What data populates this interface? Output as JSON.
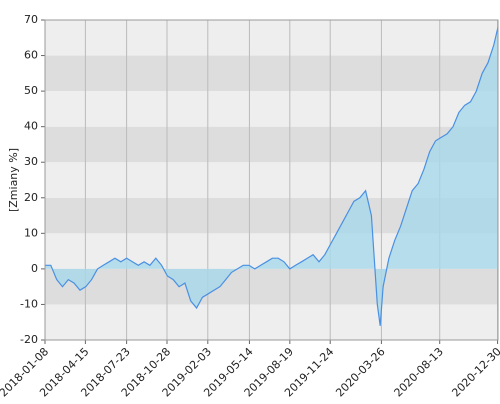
{
  "chart_data": {
    "type": "area",
    "y_label": "[Zmiany %]",
    "x": [
      "2018-01-08",
      "2018-01-22",
      "2018-02-05",
      "2018-02-19",
      "2018-03-05",
      "2018-03-19",
      "2018-04-02",
      "2018-04-16",
      "2018-04-30",
      "2018-05-14",
      "2018-05-28",
      "2018-06-11",
      "2018-06-25",
      "2018-07-09",
      "2018-07-23",
      "2018-08-06",
      "2018-08-20",
      "2018-09-03",
      "2018-09-17",
      "2018-10-01",
      "2018-10-15",
      "2018-10-29",
      "2018-11-12",
      "2018-11-26",
      "2018-12-10",
      "2018-12-24",
      "2019-01-07",
      "2019-01-21",
      "2019-02-04",
      "2019-02-18",
      "2019-03-04",
      "2019-03-18",
      "2019-04-01",
      "2019-04-15",
      "2019-04-29",
      "2019-05-13",
      "2019-05-27",
      "2019-06-10",
      "2019-06-24",
      "2019-07-08",
      "2019-07-22",
      "2019-08-05",
      "2019-08-19",
      "2019-09-02",
      "2019-09-16",
      "2019-09-30",
      "2019-10-14",
      "2019-10-28",
      "2019-11-11",
      "2019-11-25",
      "2019-12-09",
      "2019-12-23",
      "2020-01-06",
      "2020-01-20",
      "2020-02-03",
      "2020-02-17",
      "2020-03-02",
      "2020-03-16",
      "2020-03-23",
      "2020-03-30",
      "2020-04-13",
      "2020-04-27",
      "2020-05-11",
      "2020-05-25",
      "2020-06-08",
      "2020-06-22",
      "2020-07-06",
      "2020-07-20",
      "2020-08-03",
      "2020-08-17",
      "2020-08-31",
      "2020-09-14",
      "2020-09-28",
      "2020-10-12",
      "2020-10-26",
      "2020-11-09",
      "2020-11-23",
      "2020-12-07",
      "2020-12-21",
      "2020-12-31"
    ],
    "series": [
      {
        "color": "#4a90e2",
        "fill": "#a8d8ea",
        "values": [
          1,
          1,
          -3,
          -5,
          -3,
          -4,
          -6,
          -5,
          -3,
          0,
          1,
          2,
          3,
          2,
          3,
          2,
          1,
          2,
          1,
          3,
          1,
          -2,
          -3,
          -5,
          -4,
          -9,
          -11,
          -8,
          -7,
          -6,
          -5,
          -3,
          -1,
          0,
          1,
          1,
          0,
          1,
          2,
          3,
          3,
          2,
          0,
          1,
          2,
          3,
          4,
          2,
          4,
          7,
          10,
          13,
          16,
          19,
          20,
          22,
          15,
          -10,
          -16,
          -5,
          3,
          8,
          12,
          17,
          22,
          24,
          28,
          33,
          36,
          37,
          38,
          40,
          44,
          46,
          47,
          50,
          55,
          58,
          63,
          68
        ]
      }
    ],
    "xlim": [
      "2018-01-08",
      "2020-12-31"
    ],
    "xticks": [
      "2018-01-08",
      "2018-04-15",
      "2018-07-23",
      "2018-10-28",
      "2019-02-03",
      "2019-05-14",
      "2019-08-19",
      "2019-11-24",
      "2020-03-26",
      "2020-08-13",
      "2020-12-30"
    ],
    "ylim": [
      -20,
      70
    ],
    "yticks": [
      -20,
      -10,
      0,
      10,
      20,
      30,
      40,
      50,
      60,
      70
    ],
    "bands": [
      "#eeeeee",
      "#dddddd"
    ],
    "grid_color": "#bbbbbb"
  }
}
